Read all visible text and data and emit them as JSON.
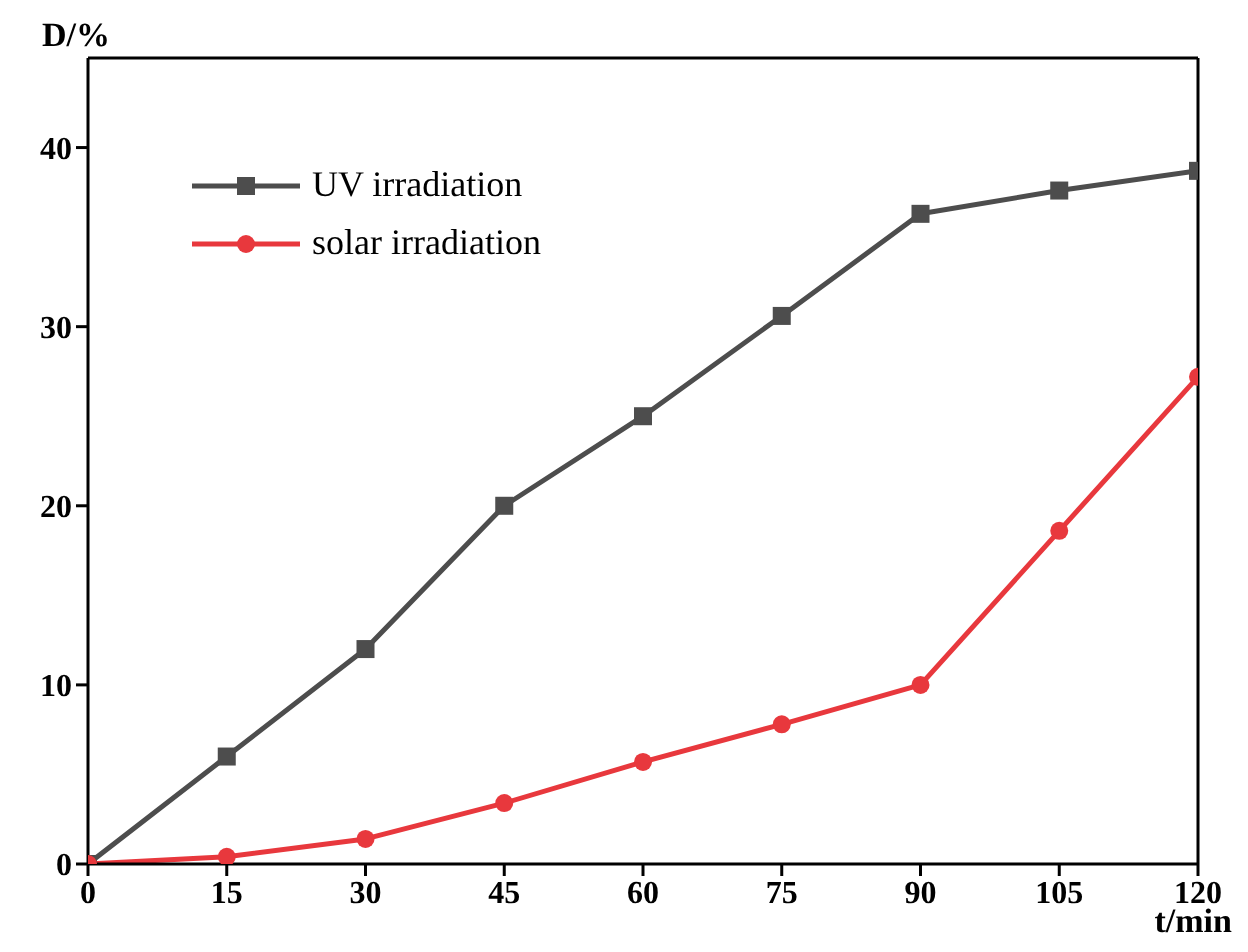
{
  "chart_data": {
    "type": "line",
    "xlabel": "t/min",
    "ylabel": "D/%",
    "x": [
      0,
      15,
      30,
      45,
      60,
      75,
      90,
      105,
      120
    ],
    "series": [
      {
        "name": "UV irradiation",
        "color": "#4d4d4d",
        "marker": "square",
        "values": [
          0,
          6,
          12,
          20,
          25,
          30.6,
          36.3,
          37.6,
          38.7
        ]
      },
      {
        "name": "solar irradiation",
        "color": "#e8383d",
        "marker": "circle",
        "values": [
          0,
          0.4,
          1.4,
          3.4,
          5.7,
          7.8,
          10,
          18.6,
          27.2
        ]
      }
    ],
    "xlim": [
      0,
      120
    ],
    "xticks": [
      0,
      15,
      30,
      45,
      60,
      75,
      90,
      105,
      120
    ],
    "ylim": [
      0,
      45
    ],
    "yticks": [
      0,
      10,
      20,
      30,
      40
    ],
    "grid": false,
    "legend": "top left",
    "line_style": "solid"
  }
}
